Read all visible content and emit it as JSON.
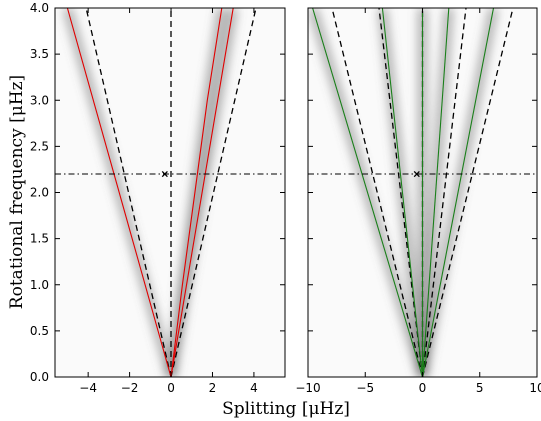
{
  "figure": {
    "xlabel": "Splitting [μHz]",
    "ylabel": "Rotational frequency [μHz]"
  },
  "chart_data": [
    {
      "type": "line",
      "panel": "left",
      "xlim": [
        -5.6,
        5.5
      ],
      "ylim": [
        0,
        4.0
      ],
      "x_ticks": [
        -4,
        -2,
        0,
        2,
        4
      ],
      "x_tick_labels": [
        "−4",
        "−2",
        "0",
        "2",
        "4"
      ],
      "y_ticks": [
        0,
        0.5,
        1.0,
        1.5,
        2.0,
        2.5,
        3.0,
        3.5,
        4.0
      ],
      "y_tick_labels": [
        "0.0",
        "0.5",
        "1.0",
        "1.5",
        "2.0",
        "2.5",
        "3.0",
        "3.5",
        "4.0"
      ],
      "background": "grayscale power density, dark ridges along the branches",
      "series": [
        {
          "style": "dashed",
          "color": "#000000",
          "points": [
            [
              0,
              0
            ],
            [
              -4.1,
              4.0
            ]
          ]
        },
        {
          "style": "dashed",
          "color": "#000000",
          "points": [
            [
              0,
              0
            ],
            [
              0,
              4.0
            ]
          ]
        },
        {
          "style": "dashed",
          "color": "#000000",
          "points": [
            [
              0,
              0
            ],
            [
              4.1,
              4.0
            ]
          ]
        },
        {
          "style": "solid",
          "color": "#e00000",
          "points": [
            [
              0,
              0
            ],
            [
              -5.0,
              4.0
            ]
          ]
        },
        {
          "style": "solid",
          "color": "#e00000",
          "points": [
            [
              0,
              0
            ],
            [
              3.0,
              4.0
            ]
          ]
        },
        {
          "style": "solid",
          "color": "#e00000",
          "points": [
            [
              0,
              0
            ],
            [
              0.55,
              1.0
            ],
            [
              1.15,
              2.0
            ],
            [
              1.75,
              3.0
            ],
            [
              2.45,
              4.0
            ]
          ]
        }
      ],
      "hline": {
        "y": 2.2,
        "style": "dashdot",
        "color": "#000000"
      },
      "marker": {
        "x": -0.3,
        "y": 2.2,
        "symbol": "×"
      }
    },
    {
      "type": "line",
      "panel": "right",
      "xlim": [
        -10,
        10
      ],
      "ylim": [
        0,
        4.0
      ],
      "x_ticks": [
        -10,
        -5,
        0,
        5,
        10
      ],
      "x_tick_labels": [
        "−10",
        "−5",
        "0",
        "5",
        "10"
      ],
      "y_tick_labels": [],
      "background": "grayscale power density, dark ridges along the branches",
      "series": [
        {
          "style": "dashed",
          "color": "#000000",
          "points": [
            [
              0,
              0
            ],
            [
              -7.9,
              4.0
            ]
          ]
        },
        {
          "style": "dashed",
          "color": "#000000",
          "points": [
            [
              0,
              0
            ],
            [
              -3.8,
              4.0
            ]
          ]
        },
        {
          "style": "dashed",
          "color": "#000000",
          "points": [
            [
              0,
              0
            ],
            [
              0,
              4.0
            ]
          ]
        },
        {
          "style": "dashed",
          "color": "#000000",
          "points": [
            [
              0,
              0
            ],
            [
              3.8,
              4.0
            ]
          ]
        },
        {
          "style": "dashed",
          "color": "#000000",
          "points": [
            [
              0,
              0
            ],
            [
              7.9,
              4.0
            ]
          ]
        },
        {
          "style": "solid",
          "color": "#1a7f1a",
          "points": [
            [
              0,
              0
            ],
            [
              -9.6,
              4.0
            ]
          ]
        },
        {
          "style": "solid",
          "color": "#1a7f1a",
          "points": [
            [
              0,
              0
            ],
            [
              -3.5,
              4.0
            ]
          ]
        },
        {
          "style": "solid",
          "color": "#1a7f1a",
          "points": [
            [
              0,
              0
            ],
            [
              0,
              4.0
            ]
          ]
        },
        {
          "style": "solid",
          "color": "#1a7f1a",
          "points": [
            [
              0,
              0
            ],
            [
              2.3,
              4.0
            ]
          ]
        },
        {
          "style": "solid",
          "color": "#1a7f1a",
          "points": [
            [
              0,
              0
            ],
            [
              6.2,
              4.0
            ]
          ]
        }
      ],
      "hline": {
        "y": 2.2,
        "style": "dashdot",
        "color": "#000000"
      },
      "marker": {
        "x": -0.5,
        "y": 2.2,
        "symbol": "×"
      }
    }
  ]
}
